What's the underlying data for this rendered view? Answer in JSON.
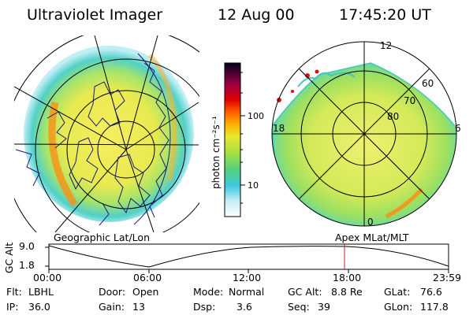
{
  "header": {
    "title": "Ultraviolet Imager",
    "date": "12 Aug 00",
    "time": "17:45:20 UT"
  },
  "left_panel": {
    "label": "Geographic Lat/Lon",
    "colors": {
      "outer": "#3cc9e0",
      "mid": "#9be56a",
      "inner": "#f2e83a",
      "hot": "#ff7a00"
    }
  },
  "colorbar": {
    "unit_label": "photon cm⁻²s⁻¹",
    "ticks": [
      "100",
      "10"
    ],
    "scale": "log"
  },
  "right_panel": {
    "label": "Apex MLat/MLT",
    "mlt_labels": [
      "12",
      "18",
      "6",
      "0"
    ],
    "mlat_labels": [
      "60",
      "70",
      "80"
    ]
  },
  "altitude_plot": {
    "ylabel": "GC Alt",
    "yticks": [
      "9.0",
      "1.8"
    ],
    "xticks": [
      "00:00",
      "06:00",
      "12:00",
      "18:00",
      "23:59"
    ],
    "marker_time": "17:45",
    "marker_color": "#d01818"
  },
  "info": {
    "flt_label": "Flt:",
    "flt_value": "LBHL",
    "door_label": "Door:",
    "door_value": "Open",
    "mode_label": "Mode:",
    "mode_value": "Normal",
    "gcalt_label": "GC Alt:",
    "gcalt_value": "8.8 Re",
    "glat_label": "GLat:",
    "glat_value": "76.6",
    "ip_label": "IP:",
    "ip_value": "36.0",
    "gain_label": "Gain:",
    "gain_value": "13",
    "dsp_label": "Dsp:",
    "dsp_value": "3.6",
    "seq_label": "Seq:",
    "seq_value": "39",
    "glon_label": "GLon:",
    "glon_value": "117.8"
  }
}
